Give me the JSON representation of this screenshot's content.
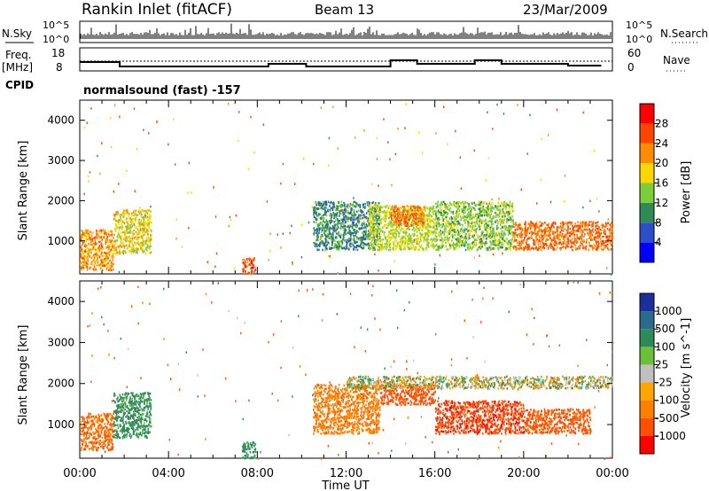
{
  "header": {
    "station": "Rankin Inlet (fitACF)",
    "beam": "Beam 13",
    "date": "23/Mar/2009"
  },
  "sky_panel": {
    "label": "N.Sky",
    "tick_top": "10^5",
    "tick_bottom": "10^0",
    "right_label": "N.Search",
    "right_tick_top": "10^5",
    "right_tick_bottom": "10^0"
  },
  "freq_panel": {
    "label": "Freq.",
    "unit": "[MHz]",
    "tick_top": "18",
    "tick_bottom": "8",
    "right_label": "Nave",
    "right_tick_top": "60",
    "right_tick_bottom": "0"
  },
  "cpid": {
    "label": "CPID",
    "text": "normalsound (fast) -157"
  },
  "colors": {
    "power": [
      "#0000ff",
      "#2a4fc9",
      "#2e8b57",
      "#7ccd3c",
      "#ffd700",
      "#ff8c00",
      "#ff4500",
      "#ff0000"
    ],
    "velocity": [
      "#1a2f9a",
      "#2a6a8a",
      "#2e8b57",
      "#6bbf3a",
      "#c0c0c0",
      "#ffa500",
      "#ff7f00",
      "#ff5000",
      "#ff0000"
    ]
  },
  "chart_data": [
    {
      "type": "heatmap",
      "title": "Power",
      "xlabel": "Time UT",
      "ylabel": "Slant Range [km]",
      "xlim": [
        "00:00",
        "24:00"
      ],
      "ylim": [
        180,
        4500
      ],
      "x_ticks": [
        "00:00",
        "04:00",
        "08:00",
        "12:00",
        "16:00",
        "20:00",
        "00:00"
      ],
      "y_ticks": [
        "1000",
        "2000",
        "3000",
        "4000"
      ],
      "colorbar_label": "Power [dB]",
      "colorbar_ticks": [
        "4",
        "8",
        "12",
        "16",
        "20",
        "24",
        "28"
      ],
      "clim": [
        0,
        32
      ],
      "regions": [
        {
          "t": [
            0.0,
            1.5
          ],
          "r": [
            300,
            1300
          ],
          "v": 22
        },
        {
          "t": [
            1.5,
            3.2
          ],
          "r": [
            700,
            1800
          ],
          "v": 18
        },
        {
          "t": [
            7.3,
            7.9
          ],
          "r": [
            200,
            600
          ],
          "v": 26
        },
        {
          "t": [
            10.5,
            13.5
          ],
          "r": [
            800,
            2000
          ],
          "v": 10
        },
        {
          "t": [
            13.0,
            16.0
          ],
          "r": [
            800,
            1900
          ],
          "v": 16
        },
        {
          "t": [
            14.0,
            15.5
          ],
          "r": [
            1400,
            1900
          ],
          "v": 24
        },
        {
          "t": [
            16.0,
            19.5
          ],
          "r": [
            800,
            2000
          ],
          "v": 14
        },
        {
          "t": [
            19.5,
            24.0
          ],
          "r": [
            800,
            1500
          ],
          "v": 24
        }
      ]
    },
    {
      "type": "heatmap",
      "title": "Velocity",
      "xlabel": "Time UT",
      "ylabel": "Slant Range [km]",
      "xlim": [
        "00:00",
        "24:00"
      ],
      "ylim": [
        180,
        4500
      ],
      "x_ticks": [
        "00:00",
        "04:00",
        "08:00",
        "12:00",
        "16:00",
        "20:00",
        "00:00"
      ],
      "y_ticks": [
        "1000",
        "2000",
        "3000",
        "4000"
      ],
      "colorbar_label": "Velocity [m s^-1]",
      "colorbar_ticks": [
        "1000",
        "500",
        "100",
        "25",
        "-25",
        "-100",
        "-500",
        "-1000"
      ],
      "regions": [
        {
          "t": [
            0.0,
            1.5
          ],
          "r": [
            400,
            1300
          ],
          "v": -300
        },
        {
          "t": [
            1.5,
            3.2
          ],
          "r": [
            700,
            1800
          ],
          "v": 150
        },
        {
          "t": [
            7.3,
            7.9
          ],
          "r": [
            200,
            600
          ],
          "v": 150
        },
        {
          "t": [
            10.5,
            13.5
          ],
          "r": [
            800,
            2000
          ],
          "v": -200
        },
        {
          "t": [
            13.5,
            16.0
          ],
          "r": [
            1500,
            2000
          ],
          "v": -600
        },
        {
          "t": [
            12.0,
            24.0
          ],
          "r": [
            1900,
            2200
          ],
          "v": 0
        },
        {
          "t": [
            16.0,
            20.0
          ],
          "r": [
            800,
            1600
          ],
          "v": -700
        },
        {
          "t": [
            20.0,
            23.0
          ],
          "r": [
            800,
            1400
          ],
          "v": -400
        }
      ]
    }
  ]
}
